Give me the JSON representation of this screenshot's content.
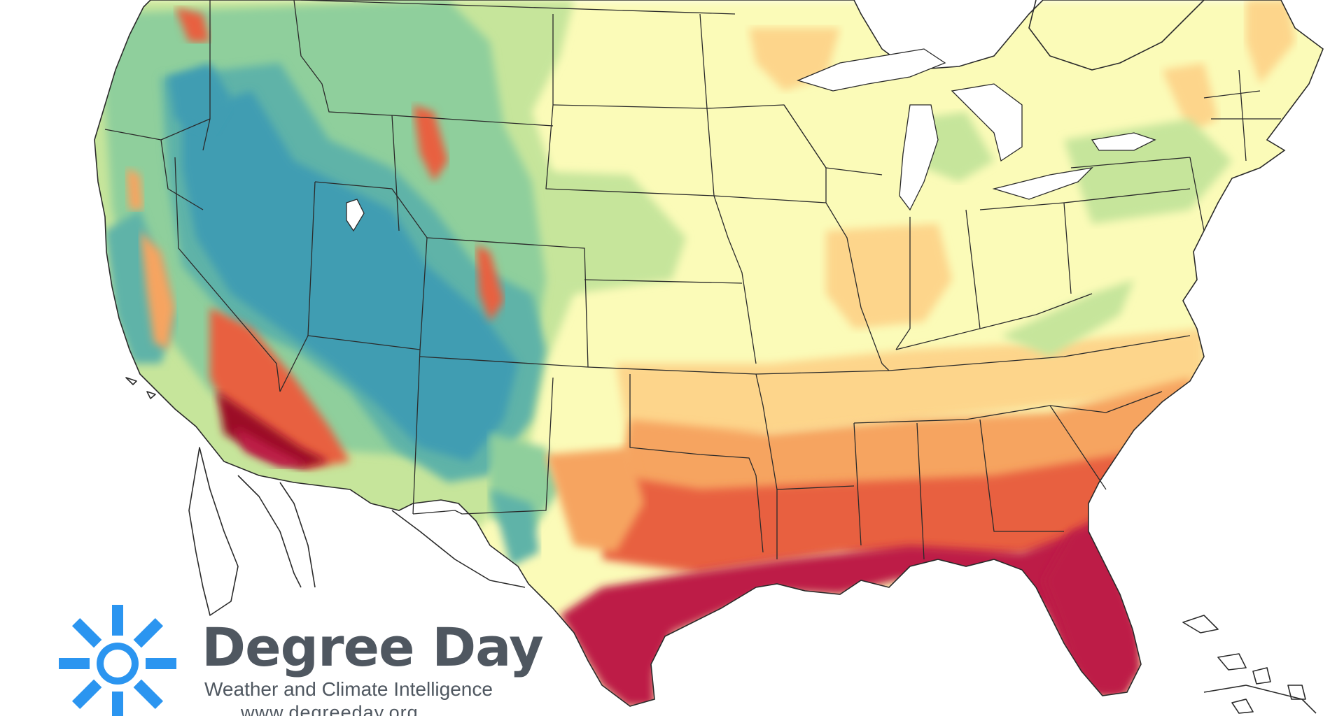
{
  "map": {
    "region": "contiguous United States",
    "colors": {
      "c1_teal": "#3f9db2",
      "c2_blue_green": "#5fb3a8",
      "c3_green": "#8fcf9c",
      "c4_light_green": "#c6e59b",
      "c5_pale_yellow": "#fbfbb8",
      "c6_light_orange": "#fdd58b",
      "c7_orange": "#f6a460",
      "c8_red_orange": "#e8603f",
      "c9_crimson": "#bd1c46",
      "c10_dark_red": "#9b1026",
      "land_outline": "#2a2a2a",
      "water": "#ffffff"
    },
    "legend": null
  },
  "logo": {
    "title": "Degree Day",
    "tagline": "Weather and Climate Intelligence",
    "url": "www.degreeday.org",
    "brand_color": "#2b95f0",
    "text_color": "#4f5760",
    "icon": "sun-burst-icon"
  }
}
